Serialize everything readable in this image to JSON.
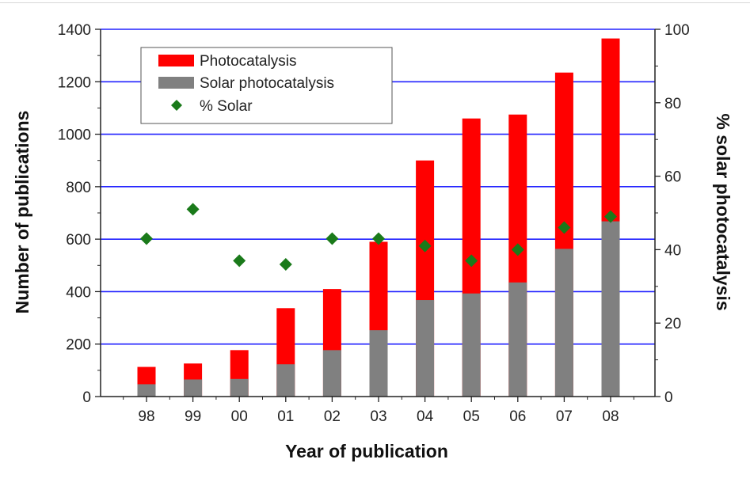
{
  "chart_data": {
    "type": "bar",
    "categories": [
      "98",
      "99",
      "00",
      "01",
      "02",
      "03",
      "04",
      "05",
      "06",
      "07",
      "08"
    ],
    "series": [
      {
        "name": "Photocatalysis",
        "kind": "bar",
        "axis": "left",
        "color": "#ff0000",
        "values": [
          113,
          126,
          177,
          337,
          410,
          590,
          900,
          1060,
          1075,
          1235,
          1365
        ]
      },
      {
        "name": "Solar photocatalysis",
        "kind": "bar",
        "axis": "left",
        "color": "#808080",
        "values": [
          47,
          65,
          67,
          123,
          177,
          253,
          368,
          393,
          435,
          563,
          668
        ]
      },
      {
        "name": "% Solar",
        "kind": "scatter",
        "axis": "right",
        "color": "#1a7a1a",
        "values": [
          43,
          51,
          37,
          36,
          43,
          43,
          41,
          37,
          40,
          46,
          49
        ]
      }
    ],
    "xlabel": "Year of publication",
    "ylabel": "Number of publications",
    "y2label": "% solar photocatalysis",
    "ylim": [
      0,
      1400
    ],
    "y2lim": [
      0,
      100
    ],
    "yticks": [
      "0",
      "200",
      "400",
      "600",
      "800",
      "1000",
      "1200",
      "1400"
    ],
    "y2ticks": [
      "0",
      "20",
      "40",
      "60",
      "80",
      "100"
    ],
    "grid": true,
    "grid_color": "#2222ff",
    "legend_position": "top-left"
  }
}
